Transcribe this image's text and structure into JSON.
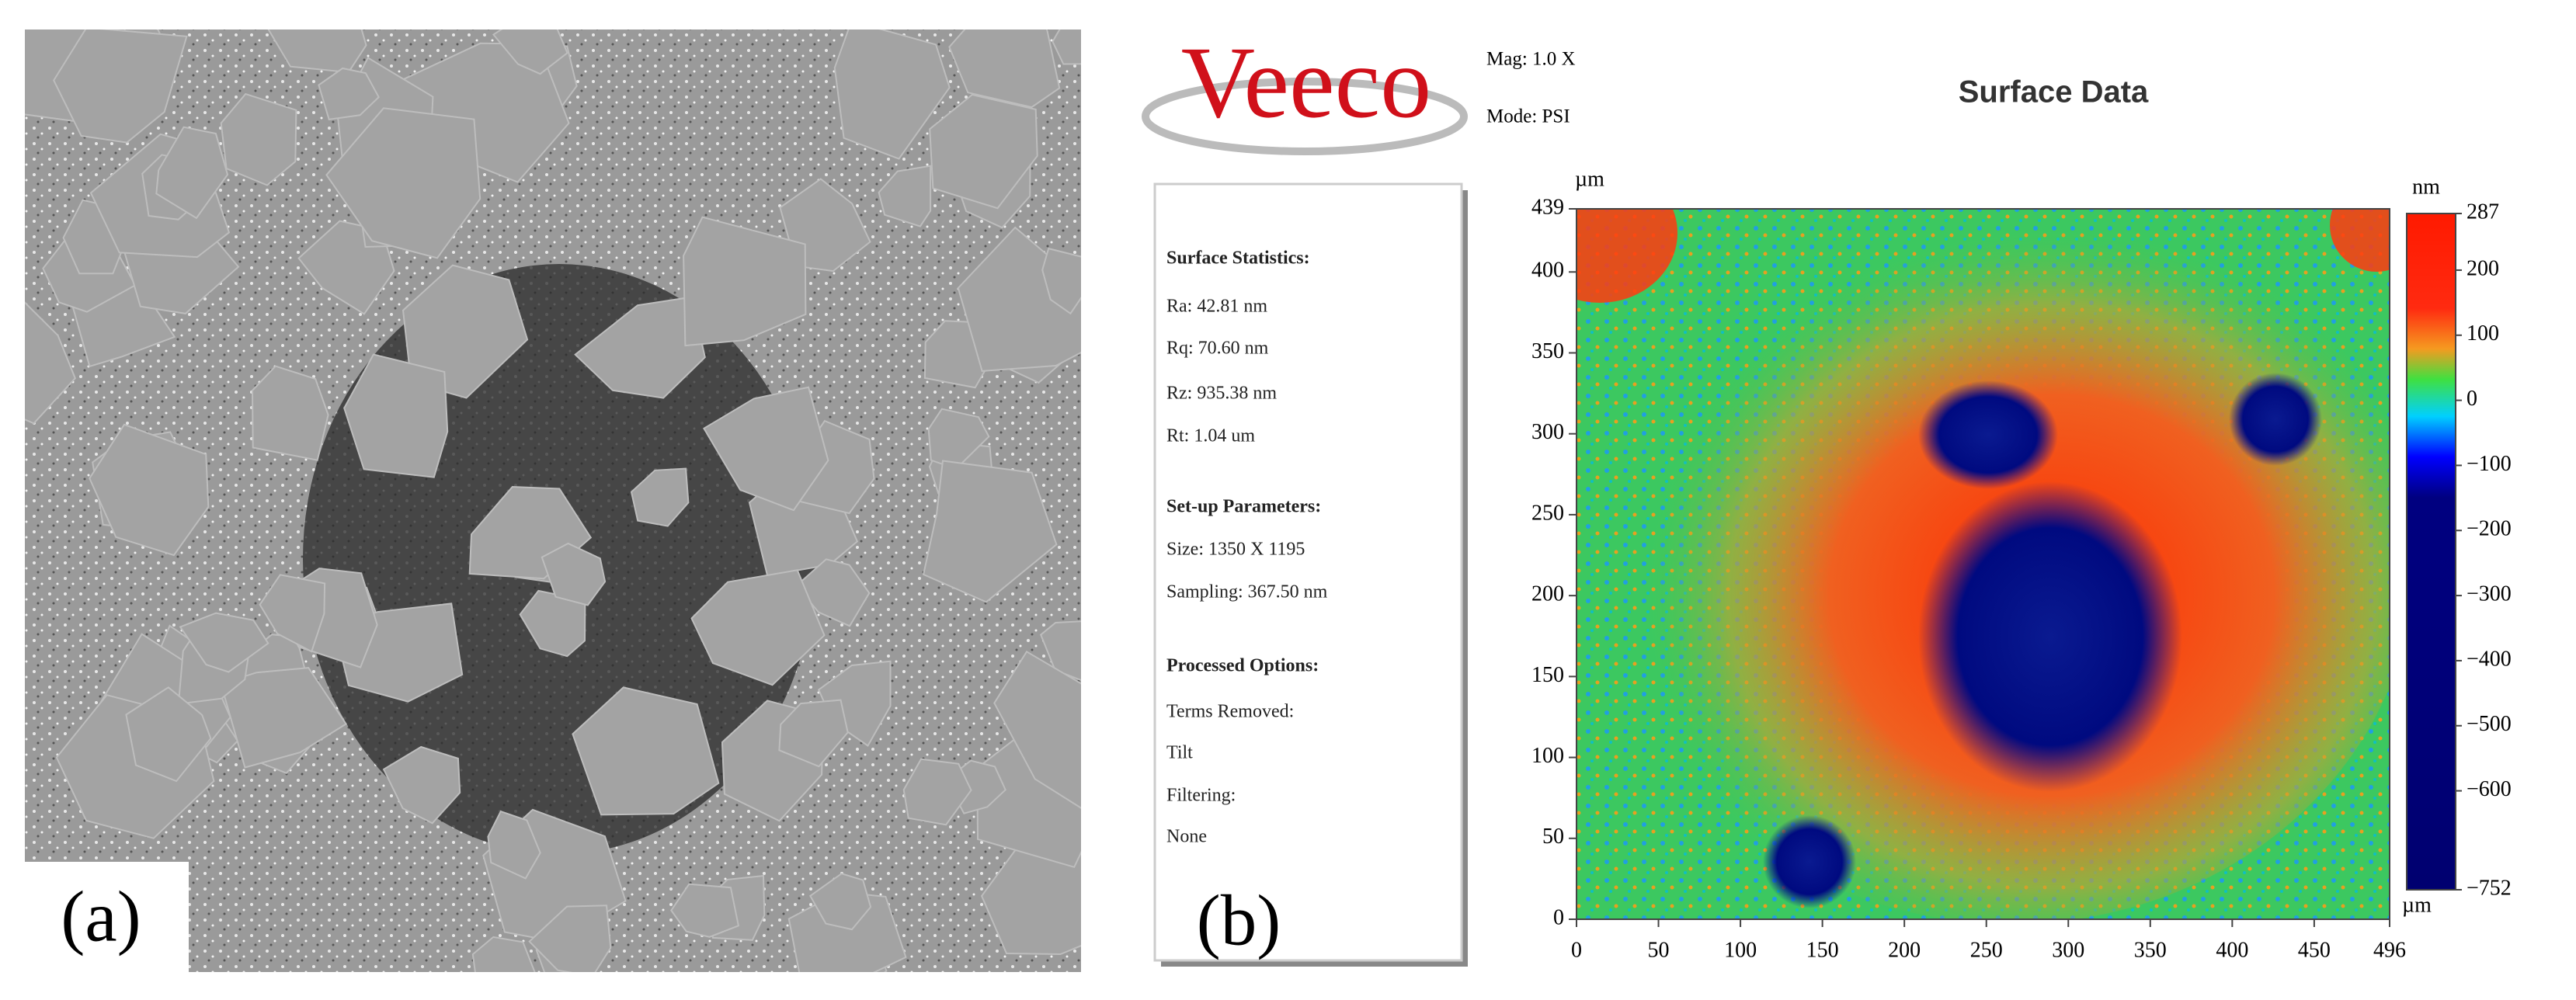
{
  "panel_a": {
    "label": "(a)"
  },
  "panel_b": {
    "label": "(b)",
    "logo": "Veeco",
    "mag": "Mag: 1.0 X",
    "mode": "Mode: PSI",
    "statistics": {
      "heading": "Surface Statistics:",
      "items": [
        "Ra: 42.81 nm",
        "Rq: 70.60 nm",
        "Rz: 935.38 nm",
        "Rt: 1.04 um"
      ]
    },
    "setup": {
      "heading": "Set-up Parameters:",
      "items": [
        "Size: 1350 X 1195",
        "Sampling: 367.50 nm"
      ]
    },
    "options": {
      "heading": "Processed Options:",
      "items": [
        "Terms Removed:",
        "Tilt",
        "Filtering:",
        "None"
      ]
    },
    "plot": {
      "title": "Surface Data",
      "y_unit": "µm",
      "x_unit": "µm",
      "xlim": [
        0,
        496
      ],
      "xticks": [
        0,
        50,
        100,
        150,
        200,
        250,
        300,
        350,
        400,
        450,
        496
      ],
      "ylim": [
        0,
        439
      ],
      "yticks": [
        0,
        50,
        100,
        150,
        200,
        250,
        300,
        350,
        400,
        439
      ],
      "colorbar": {
        "unit": "nm",
        "lim": [
          -752,
          287
        ],
        "ticks": [
          287,
          200,
          100,
          0,
          {
            "value": -100,
            "label": "−100"
          },
          {
            "value": -200,
            "label": "−200"
          },
          {
            "value": -300,
            "label": "−300"
          },
          {
            "value": -400,
            "label": "−400"
          },
          {
            "value": -500,
            "label": "−500"
          },
          {
            "value": -600,
            "label": "−600"
          },
          {
            "value": -752,
            "label": "−752"
          }
        ]
      }
    }
  }
}
